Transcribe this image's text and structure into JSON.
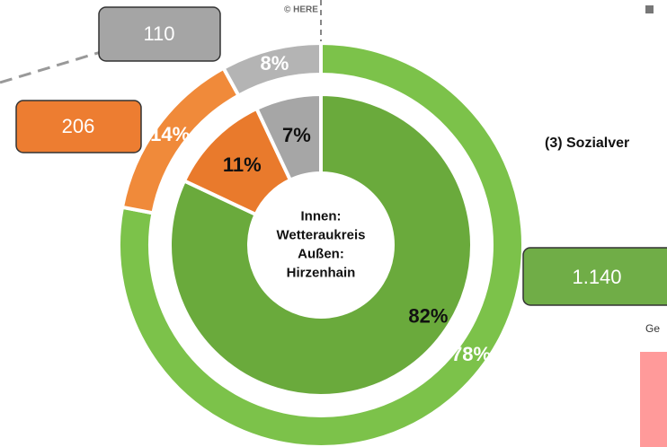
{
  "chart_data": {
    "type": "donut",
    "series": [
      {
        "ring": "outer",
        "values": [
          78,
          14,
          8
        ],
        "value_labels": [
          "78%",
          "14%",
          "8%"
        ],
        "colors": [
          "#7cc24a",
          "#f08a3a",
          "#b4b4b4"
        ],
        "label_color": "#ffffff"
      },
      {
        "ring": "inner",
        "values": [
          82,
          11,
          7
        ],
        "value_labels": [
          "82%",
          "11%",
          "7%"
        ],
        "colors": [
          "#6aaa3c",
          "#e97a2c",
          "#a6a6a6"
        ],
        "label_color": "#111111"
      }
    ],
    "center_text": [
      "Innen:",
      "Wetteraukreis",
      "Außen:",
      "Hirzenhain"
    ],
    "callouts": [
      "1.140",
      "206",
      "110"
    ],
    "credit": "© HERE",
    "side_title": "(3) Sozialver",
    "side_note": "Ge"
  }
}
